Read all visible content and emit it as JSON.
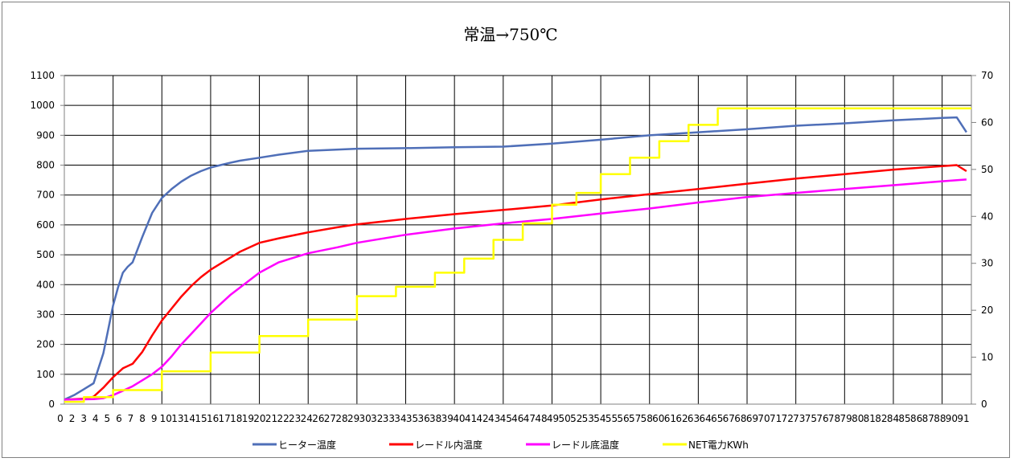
{
  "chart_data": {
    "type": "line",
    "title": "常温→750℃",
    "xlabel": "",
    "ylabel": "",
    "x_tick_labels": [
      "0",
      "2",
      "3",
      "4",
      "5",
      "6",
      "7",
      "8",
      "9",
      "10",
      "13",
      "14",
      "15",
      "16",
      "17",
      "18",
      "19",
      "20",
      "21",
      "22",
      "23",
      "24",
      "26",
      "27",
      "28",
      "29",
      "30",
      "32",
      "33",
      "34",
      "35",
      "36",
      "38",
      "39",
      "40",
      "41",
      "42",
      "43",
      "45",
      "46",
      "47",
      "48",
      "49",
      "50",
      "52",
      "53",
      "54",
      "55",
      "56",
      "57",
      "58",
      "60",
      "61",
      "62",
      "63",
      "64",
      "65",
      "67",
      "68",
      "69",
      "70",
      "71",
      "72",
      "73",
      "75",
      "76",
      "78",
      "79",
      "80",
      "81",
      "82",
      "84",
      "85",
      "86",
      "87",
      "88",
      "90",
      "91"
    ],
    "ylim_left": [
      0,
      1100
    ],
    "yticks_left": [
      "0",
      "100",
      "200",
      "300",
      "400",
      "500",
      "600",
      "700",
      "800",
      "900",
      "1000",
      "1100"
    ],
    "ylim_right": [
      0,
      70
    ],
    "yticks_right": [
      "0",
      "10",
      "20",
      "30",
      "40",
      "50",
      "60",
      "70"
    ],
    "xlim": [
      0,
      93
    ],
    "grid": true,
    "legend_position": "bottom",
    "series": [
      {
        "name": "ヒーター温度",
        "axis": "left",
        "color": "#4f6fb8",
        "x": [
          0,
          1,
          2,
          3,
          4,
          4.5,
          5,
          5.5,
          6,
          6.5,
          7,
          8,
          9,
          10,
          11,
          12,
          13,
          14,
          15,
          16,
          17,
          18,
          20,
          22,
          25,
          30,
          35,
          40,
          45,
          50,
          55,
          60,
          65,
          70,
          75,
          80,
          85,
          90,
          91.5,
          92.5
        ],
        "y": [
          15,
          30,
          50,
          70,
          170,
          250,
          330,
          390,
          440,
          460,
          475,
          560,
          640,
          690,
          720,
          745,
          765,
          780,
          792,
          800,
          808,
          815,
          825,
          835,
          848,
          855,
          857,
          860,
          862,
          872,
          885,
          900,
          910,
          920,
          932,
          940,
          950,
          958,
          960,
          910
        ]
      },
      {
        "name": "レードル内温度",
        "axis": "left",
        "color": "#ff0000",
        "x": [
          0,
          2,
          3,
          4,
          5,
          6,
          7,
          8,
          9,
          10,
          11,
          12,
          13,
          14,
          15,
          16,
          18,
          20,
          22,
          25,
          28,
          30,
          35,
          40,
          45,
          50,
          55,
          60,
          65,
          70,
          75,
          80,
          85,
          90,
          91.5,
          92.5
        ],
        "y": [
          15,
          18,
          25,
          55,
          90,
          120,
          135,
          175,
          230,
          280,
          320,
          360,
          395,
          425,
          450,
          470,
          510,
          540,
          555,
          575,
          592,
          602,
          620,
          636,
          650,
          665,
          685,
          703,
          720,
          738,
          755,
          770,
          785,
          797,
          800,
          780
        ]
      },
      {
        "name": "レードル底温度",
        "axis": "left",
        "color": "#ff00ff",
        "x": [
          0,
          3,
          4,
          5,
          6,
          7,
          8,
          9,
          10,
          11,
          12,
          13,
          14,
          15,
          16,
          17,
          18,
          20,
          22,
          25,
          28,
          30,
          35,
          40,
          45,
          50,
          55,
          60,
          65,
          70,
          75,
          80,
          85,
          90,
          92.5
        ],
        "y": [
          15,
          17,
          20,
          30,
          45,
          60,
          80,
          100,
          125,
          160,
          200,
          235,
          270,
          305,
          335,
          365,
          390,
          440,
          475,
          505,
          525,
          540,
          567,
          588,
          605,
          620,
          638,
          655,
          675,
          693,
          707,
          720,
          733,
          746,
          752
        ]
      },
      {
        "name": "NET電力KWh",
        "axis": "right",
        "color": "#ffff00",
        "steps": [
          [
            0,
            0.5
          ],
          [
            2,
            1.5
          ],
          [
            5,
            3
          ],
          [
            10,
            7
          ],
          [
            15,
            11
          ],
          [
            20,
            14.5
          ],
          [
            25,
            18
          ],
          [
            30,
            23
          ],
          [
            34,
            25
          ],
          [
            38,
            28
          ],
          [
            41,
            31
          ],
          [
            44,
            35
          ],
          [
            47,
            38.5
          ],
          [
            50,
            42.5
          ],
          [
            52.5,
            45
          ],
          [
            55,
            49
          ],
          [
            58,
            52.5
          ],
          [
            61,
            56
          ],
          [
            64,
            59.5
          ],
          [
            67,
            63
          ]
        ],
        "x_end": 93
      }
    ]
  }
}
